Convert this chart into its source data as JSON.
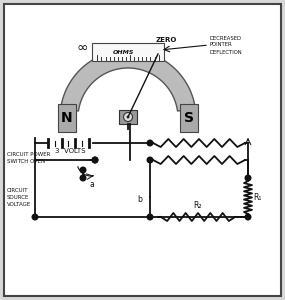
{
  "bg_color": "#d8d8d8",
  "border_color": "#444444",
  "text_zero": "ZERO",
  "text_ohms": "OHMS",
  "text_inf": "∞",
  "text_decreased": "DECREASED\nPOINTER\nDEFLECTION",
  "text_3volts": "3  VOLTS",
  "text_switch": "CIRCUIT POWER\nSWITCH OPEN",
  "text_source": "CIRCUIT\nSOURCE\nVOLTAGE",
  "text_a": "a",
  "text_b": "b",
  "text_R1": "R₁",
  "text_R2": "R₂",
  "line_color": "#111111",
  "node_color": "#111111",
  "magnet_color": "#aaaaaa",
  "scale_bg": "#f0f0f0"
}
